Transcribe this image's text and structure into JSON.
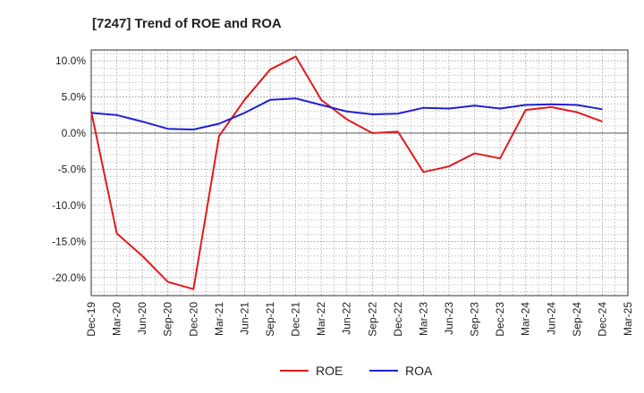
{
  "chart_data": {
    "type": "line",
    "title": "[7247]  Trend of ROE and ROA",
    "xlabel": "",
    "ylabel": "",
    "categories": [
      "Dec-19",
      "Mar-20",
      "Jun-20",
      "Sep-20",
      "Dec-20",
      "Mar-21",
      "Jun-21",
      "Sep-21",
      "Dec-21",
      "Mar-22",
      "Jun-22",
      "Sep-22",
      "Dec-22",
      "Mar-23",
      "Jun-23",
      "Sep-23",
      "Dec-23",
      "Mar-24",
      "Jun-24",
      "Sep-24",
      "Dec-24",
      "Mar-25"
    ],
    "ylim": [
      -22.5,
      11.5
    ],
    "yticks": [
      10,
      5,
      0,
      -5,
      -10,
      -15,
      -20
    ],
    "ytick_labels": [
      "10.0%",
      "5.0%",
      "0.0%",
      "-5.0%",
      "-10.0%",
      "-15.0%",
      "-20.0%"
    ],
    "grid": true,
    "legend_position": "bottom-center",
    "series": [
      {
        "name": "ROE",
        "color": "#e31a1c",
        "values": [
          3.0,
          -13.9,
          -17.0,
          -20.6,
          -21.6,
          -0.4,
          4.6,
          8.8,
          10.6,
          4.6,
          1.9,
          0.0,
          0.2,
          -5.4,
          -4.6,
          -2.8,
          -3.5,
          3.2,
          3.6,
          2.9,
          1.6,
          null
        ]
      },
      {
        "name": "ROA",
        "color": "#1f1fd6",
        "values": [
          2.8,
          2.5,
          1.6,
          0.6,
          0.5,
          1.3,
          2.8,
          4.6,
          4.8,
          3.9,
          3.0,
          2.6,
          2.7,
          3.5,
          3.4,
          3.8,
          3.4,
          3.9,
          4.0,
          3.9,
          3.3,
          null
        ]
      }
    ]
  }
}
